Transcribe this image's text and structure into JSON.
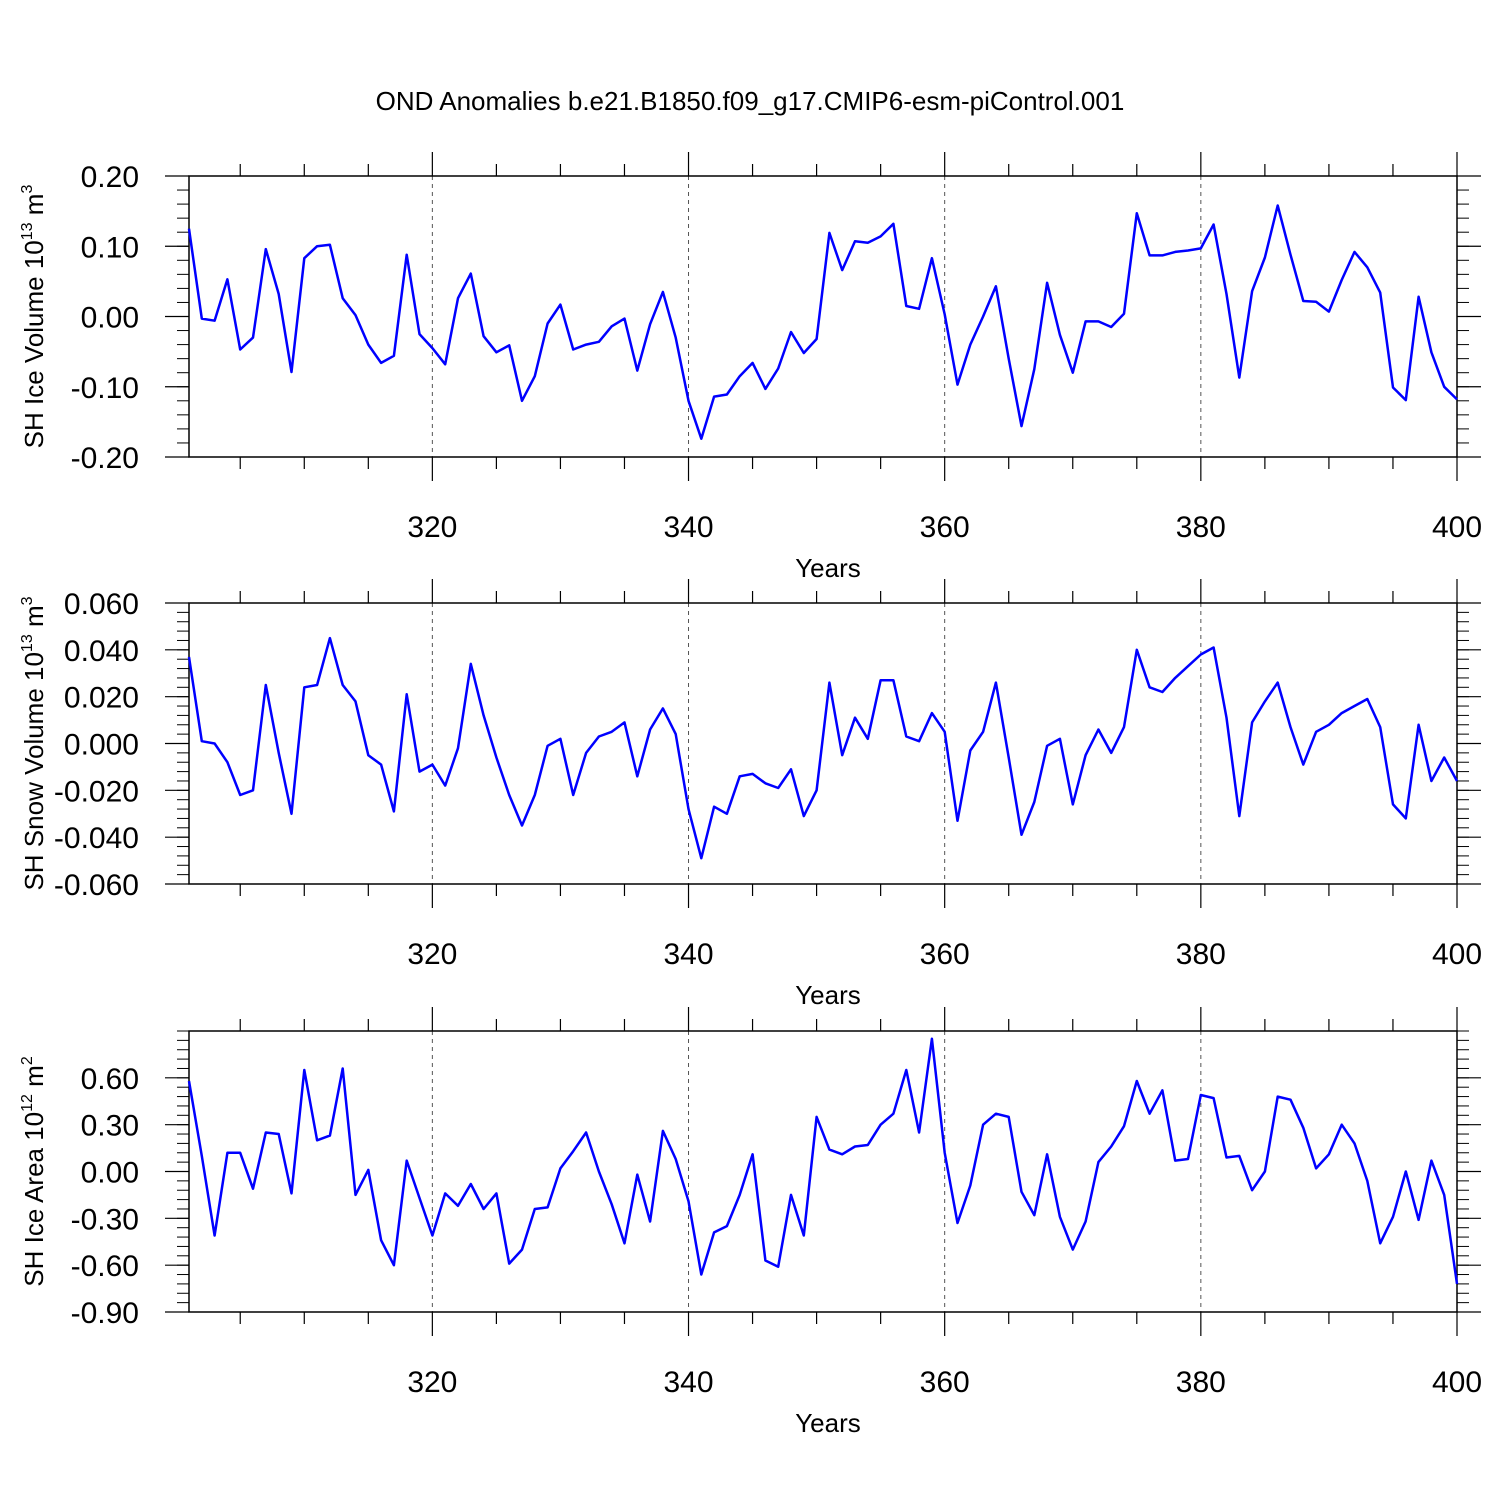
{
  "title": "OND Anomalies b.e21.B1850.f09_g17.CMIP6-esm-piControl.001",
  "colors": {
    "line": "#0000ff",
    "axis": "#000000",
    "grid": "#555555"
  },
  "chart_data": [
    {
      "type": "line",
      "ylabel_main": "SH Ice Volume 10",
      "ylabel_sup": "13",
      "ylabel_tail": " m",
      "ylabel_sup2": "3",
      "xlabel": "Years",
      "xlim": [
        301,
        400
      ],
      "ylim": [
        -0.2,
        0.2
      ],
      "xticks": [
        320,
        340,
        360,
        380,
        400
      ],
      "xtick_labels": [
        "320",
        "340",
        "360",
        "380",
        "400"
      ],
      "yticks": [
        -0.2,
        -0.1,
        0.0,
        0.1,
        0.2
      ],
      "ytick_labels": [
        "-0.20",
        "-0.10",
        "0.00",
        "0.10",
        "0.20"
      ],
      "grid": "vertical dashed at major x ticks",
      "x_start": 301,
      "values": [
        0.125,
        -0.003,
        -0.006,
        0.053,
        -0.047,
        -0.03,
        0.096,
        0.032,
        -0.079,
        0.083,
        0.1,
        0.102,
        0.026,
        0.002,
        -0.04,
        -0.066,
        -0.056,
        0.088,
        -0.025,
        -0.045,
        -0.068,
        0.026,
        0.061,
        -0.028,
        -0.051,
        -0.041,
        -0.12,
        -0.085,
        -0.01,
        0.017,
        -0.047,
        -0.04,
        -0.036,
        -0.014,
        -0.003,
        -0.077,
        -0.011,
        0.035,
        -0.03,
        -0.12,
        -0.174,
        -0.114,
        -0.111,
        -0.085,
        -0.066,
        -0.103,
        -0.074,
        -0.022,
        -0.052,
        -0.032,
        0.119,
        0.066,
        0.107,
        0.105,
        0.114,
        0.132,
        0.015,
        0.011,
        0.083,
        0.003,
        -0.097,
        -0.04,
        0.0,
        0.043,
        -0.06,
        -0.156,
        -0.075,
        0.048,
        -0.026,
        -0.08,
        -0.007,
        -0.007,
        -0.015,
        0.004,
        0.147,
        0.087,
        0.087,
        0.092,
        0.094,
        0.097,
        0.131,
        0.032,
        -0.087,
        0.036,
        0.084,
        0.158,
        0.088,
        0.022,
        0.021,
        0.007,
        0.052,
        0.092,
        0.07,
        0.034,
        -0.101,
        -0.119,
        0.028,
        -0.051,
        -0.1,
        -0.118
      ]
    },
    {
      "type": "line",
      "ylabel_main": "SH Snow Volume 10",
      "ylabel_sup": "13",
      "ylabel_tail": " m",
      "ylabel_sup2": "3",
      "xlabel": "Years",
      "xlim": [
        301,
        400
      ],
      "ylim": [
        -0.06,
        0.06
      ],
      "xticks": [
        320,
        340,
        360,
        380,
        400
      ],
      "xtick_labels": [
        "320",
        "340",
        "360",
        "380",
        "400"
      ],
      "yticks": [
        -0.06,
        -0.04,
        -0.02,
        0.0,
        0.02,
        0.04,
        0.06
      ],
      "ytick_labels": [
        "-0.060",
        "-0.040",
        "-0.020",
        "0.000",
        "0.020",
        "0.040",
        "0.060"
      ],
      "grid": "vertical dashed at major x ticks",
      "x_start": 301,
      "values": [
        0.037,
        0.001,
        0.0,
        -0.008,
        -0.022,
        -0.02,
        0.025,
        -0.004,
        -0.03,
        0.024,
        0.025,
        0.045,
        0.025,
        0.018,
        -0.005,
        -0.009,
        -0.029,
        0.021,
        -0.012,
        -0.009,
        -0.018,
        -0.002,
        0.034,
        0.012,
        -0.006,
        -0.022,
        -0.035,
        -0.022,
        -0.001,
        0.002,
        -0.022,
        -0.004,
        0.003,
        0.005,
        0.009,
        -0.014,
        0.006,
        0.015,
        0.004,
        -0.028,
        -0.049,
        -0.027,
        -0.03,
        -0.014,
        -0.013,
        -0.017,
        -0.019,
        -0.011,
        -0.031,
        -0.02,
        0.026,
        -0.005,
        0.011,
        0.002,
        0.027,
        0.027,
        0.003,
        0.001,
        0.013,
        0.005,
        -0.033,
        -0.003,
        0.005,
        0.026,
        -0.006,
        -0.039,
        -0.025,
        -0.001,
        0.002,
        -0.026,
        -0.005,
        0.006,
        -0.004,
        0.007,
        0.04,
        0.024,
        0.022,
        0.028,
        0.033,
        0.038,
        0.041,
        0.011,
        -0.031,
        0.009,
        0.018,
        0.026,
        0.007,
        -0.009,
        0.005,
        0.008,
        0.013,
        0.016,
        0.019,
        0.007,
        -0.026,
        -0.032,
        0.008,
        -0.016,
        -0.006,
        -0.016
      ]
    },
    {
      "type": "line",
      "ylabel_main": "SH Ice Area 10",
      "ylabel_sup": "12",
      "ylabel_tail": " m",
      "ylabel_sup2": "2",
      "xlabel": "Years",
      "xlim": [
        301,
        400
      ],
      "ylim": [
        -0.9,
        0.9
      ],
      "xticks": [
        320,
        340,
        360,
        380,
        400
      ],
      "xtick_labels": [
        "320",
        "340",
        "360",
        "380",
        "400"
      ],
      "yticks": [
        -0.9,
        -0.6,
        -0.3,
        0.0,
        0.3,
        0.6
      ],
      "ytick_labels": [
        "-0.90",
        "-0.60",
        "-0.30",
        "0.00",
        "0.30",
        "0.60"
      ],
      "grid": "vertical dashed at major x ticks",
      "x_start": 301,
      "values": [
        0.58,
        0.1,
        -0.41,
        0.12,
        0.12,
        -0.11,
        0.25,
        0.24,
        -0.14,
        0.65,
        0.2,
        0.23,
        0.66,
        -0.15,
        0.01,
        -0.44,
        -0.6,
        0.07,
        -0.17,
        -0.41,
        -0.14,
        -0.22,
        -0.08,
        -0.24,
        -0.14,
        -0.59,
        -0.5,
        -0.24,
        -0.23,
        0.02,
        0.13,
        0.25,
        0.0,
        -0.21,
        -0.46,
        -0.02,
        -0.32,
        0.26,
        0.08,
        -0.19,
        -0.66,
        -0.39,
        -0.35,
        -0.15,
        0.11,
        -0.57,
        -0.61,
        -0.15,
        -0.41,
        0.35,
        0.14,
        0.11,
        0.16,
        0.17,
        0.3,
        0.37,
        0.65,
        0.25,
        0.85,
        0.12,
        -0.33,
        -0.09,
        0.3,
        0.37,
        0.35,
        -0.13,
        -0.28,
        0.11,
        -0.29,
        -0.5,
        -0.32,
        0.06,
        0.16,
        0.29,
        0.58,
        0.37,
        0.52,
        0.07,
        0.08,
        0.49,
        0.47,
        0.09,
        0.1,
        -0.12,
        0.0,
        0.48,
        0.46,
        0.28,
        0.02,
        0.11,
        0.3,
        0.18,
        -0.06,
        -0.46,
        -0.29,
        0.0,
        -0.31,
        0.07,
        -0.15,
        -0.72
      ]
    }
  ]
}
